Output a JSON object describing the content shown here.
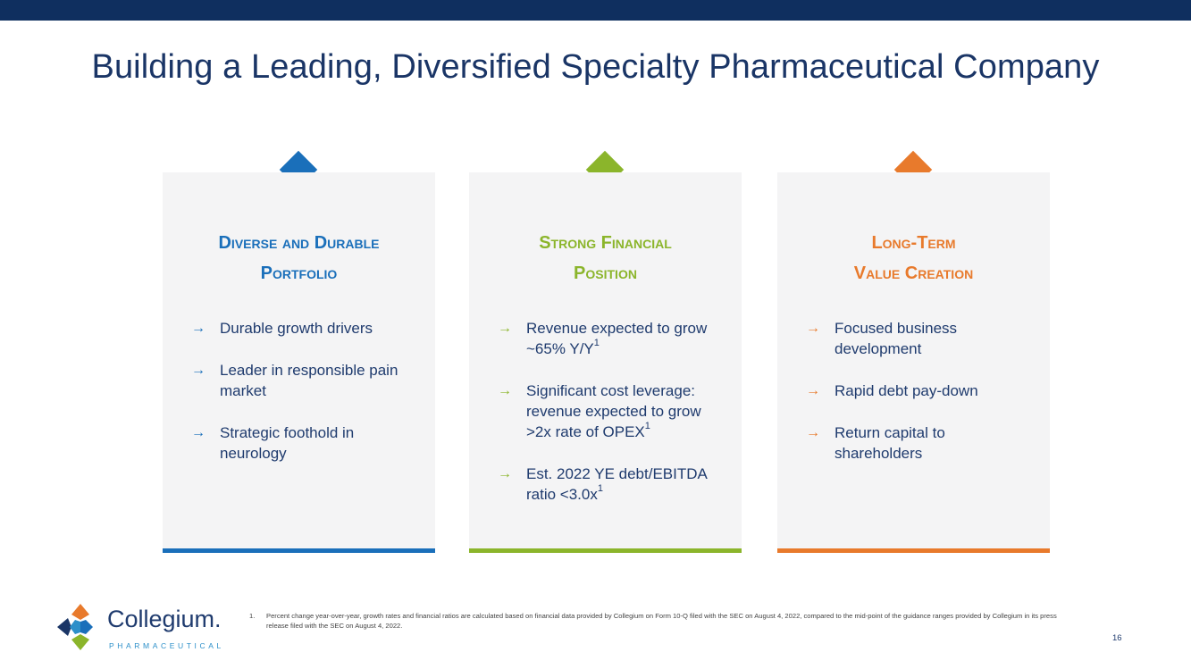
{
  "title": "Building a Leading, Diversified Specialty Pharmaceutical Company",
  "colors": {
    "navy": "#0f2f5f",
    "blue": "#1a6fba",
    "green": "#8bb52b",
    "orange": "#e87a2c",
    "card_bg": "#f4f4f5"
  },
  "cards": [
    {
      "title_line1": "Diverse and Durable",
      "title_line2": "Portfolio",
      "bullets": [
        {
          "text": "Durable growth drivers"
        },
        {
          "text": "Leader in responsible pain market"
        },
        {
          "text": "Strategic foothold in neurology"
        }
      ]
    },
    {
      "title_line1": "Strong Financial",
      "title_line2": "Position",
      "bullets": [
        {
          "text": "Revenue expected to grow ~65% Y/Y",
          "sup": "1"
        },
        {
          "text": "Significant cost leverage: revenue expected to grow >2x rate of OPEX",
          "sup": "1"
        },
        {
          "text": "Est. 2022 YE debt/EBITDA ratio <3.0x",
          "sup": "1"
        }
      ]
    },
    {
      "title_line1": "Long-Term",
      "title_line2": "Value Creation",
      "bullets": [
        {
          "text": "Focused business development"
        },
        {
          "text": "Rapid debt pay-down"
        },
        {
          "text": "Return capital to shareholders"
        }
      ]
    }
  ],
  "arrow_glyph": "→",
  "logo": {
    "name": "Collegium.",
    "subtitle": "PHARMACEUTICAL"
  },
  "footnote": {
    "number": "1.",
    "text": "Percent change year-over-year, growth rates and financial ratios are calculated based on financial data provided by Collegium on Form 10-Q filed with the SEC on August 4, 2022, compared to the mid-point of the guidance ranges provided by Collegium in its press release filed with the SEC on August 4, 2022."
  },
  "page_number": "16"
}
